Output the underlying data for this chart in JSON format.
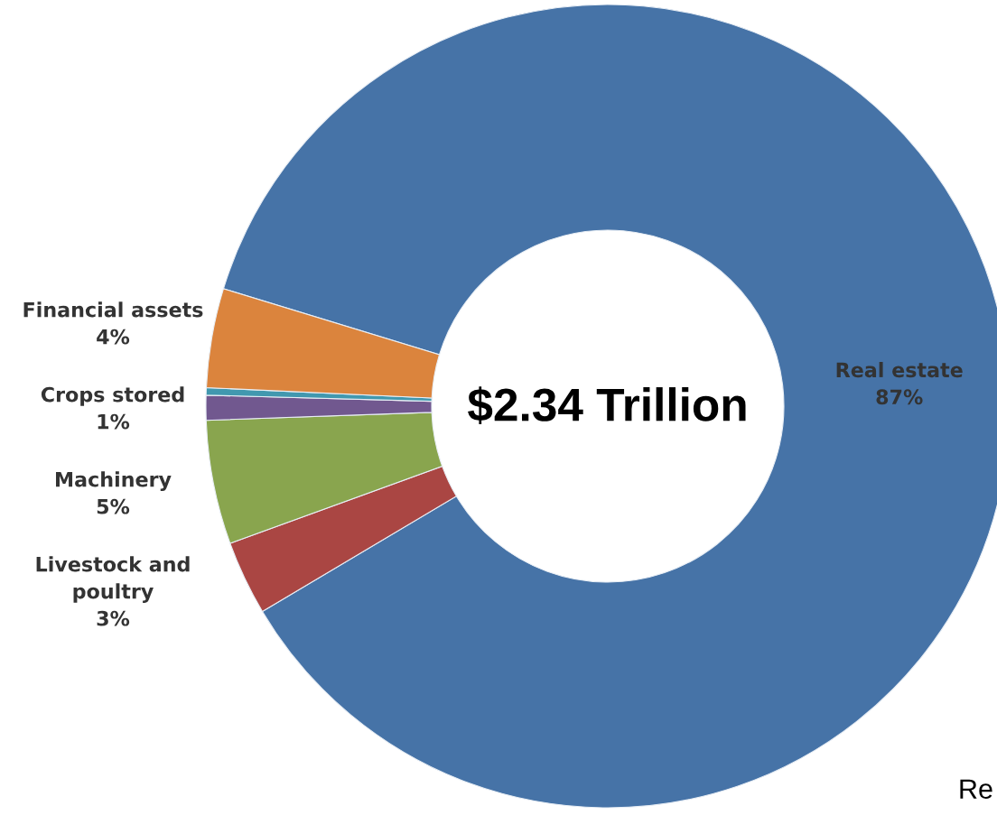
{
  "chart_data": {
    "type": "donut",
    "categories": [
      "Real estate",
      "Livestock and\npoultry",
      "Machinery",
      "Crops stored",
      null,
      "Financial assets"
    ],
    "values": [
      87,
      3,
      5,
      1,
      0.3,
      4
    ],
    "value_labels": [
      "87%",
      "3%",
      "5%",
      "1%",
      null,
      "4%"
    ],
    "colors": [
      "#4673a7",
      "#aa4643",
      "#89a54e",
      "#71588f",
      "#4198af",
      "#db843d"
    ],
    "annotations": [
      "$2.34 Trillion",
      "Re"
    ],
    "legend": false
  }
}
